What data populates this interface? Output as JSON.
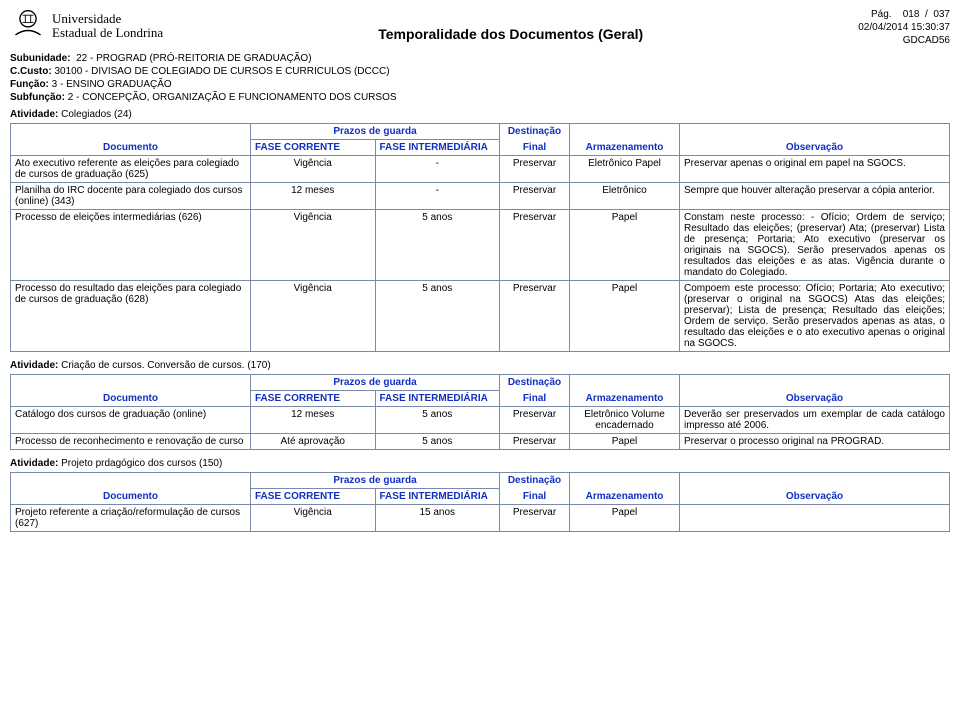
{
  "colors": {
    "header_theme": "#1030c0",
    "border": "#7a8aa8",
    "text": "#000000"
  },
  "meta": {
    "page_label": "Pág.",
    "page_current": "018",
    "page_sep": "/",
    "page_total": "037",
    "datetime": "02/04/2014 15:30:37",
    "code": "GDCAD56"
  },
  "logo": {
    "line1": "Universidade",
    "line2": "Estadual de Londrina"
  },
  "title": "Temporalidade dos Documentos  (Geral)",
  "context": {
    "sub_label": "Subunidade:",
    "sub_value": "22 - PROGRAD  (PRÓ-REITORIA DE GRADUAÇÃO)",
    "ccusto_label": "C.Custo:",
    "ccusto_value": "30100 - DIVISAO DE COLEGIADO DE CURSOS E CURRICULOS  (DCCC)",
    "funcao_label": "Função:",
    "funcao_value": "3 - ENSINO GRADUAÇÃO",
    "subfuncao_label": "Subfunção:",
    "subfuncao_value": "2 - CONCEPÇÃO, ORGANIZAÇÃO E FUNCIONAMENTO DOS CURSOS"
  },
  "columns": {
    "documento": "Documento",
    "prazos": "Prazos de guarda",
    "fase_corrente": "FASE CORRENTE",
    "fase_inter": "FASE INTERMEDIÁRIA",
    "destinacao_top": "Destinação",
    "destinacao_bot": "Final",
    "armazenamento": "Armazenamento",
    "observacao": "Observação"
  },
  "activities": [
    {
      "label": "Atividade:",
      "name": "Colegiados (24)",
      "rows": [
        {
          "doc": "Ato executivo referente as eleições para colegiado de cursos de graduação (625)",
          "fc": "Vigência",
          "fi": "-",
          "dest": "Preservar",
          "arm": "Eletrônico Papel",
          "obs": "Preservar apenas o original em papel na SGOCS."
        },
        {
          "doc": "Planilha do IRC docente para colegiado dos cursos (online) (343)",
          "fc": "12 meses",
          "fi": "-",
          "dest": "Preservar",
          "arm": "Eletrônico",
          "obs": "Sempre que houver alteração preservar a cópia anterior."
        },
        {
          "doc": "Processo de eleições intermediárias (626)",
          "fc": "Vigência",
          "fi": "5 anos",
          "dest": "Preservar",
          "arm": "Papel",
          "obs": "Constam neste processo: - Ofício; Ordem de serviço;  Resultado das eleições; (preservar)  Ata; (preservar) Lista de presença;  Portaria;  Ato executivo (preservar os originais na SGOCS).  Serão preservados apenas os resultados das eleições e as atas. Vigência durante o mandato do Colegiado."
        },
        {
          "doc": "Processo do resultado das eleições para colegiado de cursos de graduação (628)",
          "fc": "Vigência",
          "fi": "5 anos",
          "dest": "Preservar",
          "arm": "Papel",
          "obs": "Compoem este processo:  Ofício; Portaria;  Ato executivo; (preservar o original na SGOCS)  Atas das eleições; preservar);  Lista de presença; Resultado das eleições;  Ordem de serviço.  Serão preservados apenas as atas, o resultado das eleições e o ato executivo  apenas o original na SGOCS."
        }
      ]
    },
    {
      "label": "Atividade:",
      "name": "Criação de cursos. Conversão de cursos. (170)",
      "rows": [
        {
          "doc": "Catálogo dos cursos de graduação (online)",
          "fc": "12 meses",
          "fi": "5 anos",
          "dest": "Preservar",
          "arm": "Eletrônico Volume encadernado",
          "obs": "Deverão ser preservados um exemplar de cada catálogo impresso até 2006."
        },
        {
          "doc": "Processo de reconhecimento e renovação de curso",
          "fc": "Até aprovação",
          "fi": "5 anos",
          "dest": "Preservar",
          "arm": "Papel",
          "obs": "Preservar o processo original na PROGRAD."
        }
      ]
    },
    {
      "label": "Atividade:",
      "name": "Projeto prdagógico dos cursos (150)",
      "rows": [
        {
          "doc": "Projeto referente a criação/reformulação de cursos (627)",
          "fc": "Vigência",
          "fi": "15 anos",
          "dest": "Preservar",
          "arm": "Papel",
          "obs": ""
        }
      ]
    }
  ]
}
